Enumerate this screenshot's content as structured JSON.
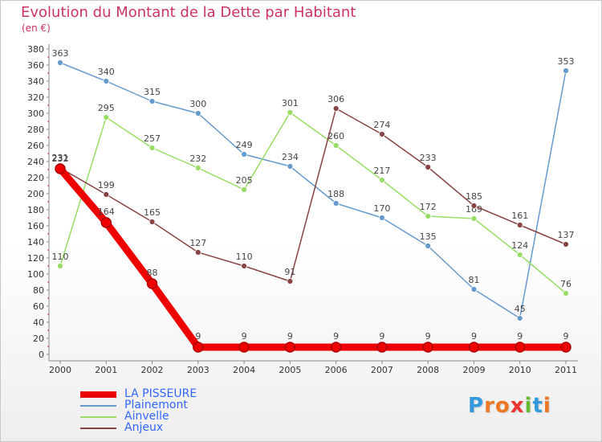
{
  "header": {
    "title": "Evolution du Montant de la Dette par Habitant",
    "unit": "(en €)"
  },
  "brand": {
    "letters": [
      {
        "ch": "P",
        "color": "#3399dd"
      },
      {
        "ch": "r",
        "color": "#ee7722"
      },
      {
        "ch": "o",
        "color": "#ee7722"
      },
      {
        "ch": "x",
        "color": "#ee3333"
      },
      {
        "ch": "i",
        "color": "#66bb33"
      },
      {
        "ch": "t",
        "color": "#3399dd"
      },
      {
        "ch": "i",
        "color": "#ee7722"
      }
    ]
  },
  "chart_data": {
    "type": "line",
    "title": "Evolution du Montant de la Dette par Habitant",
    "subtitle": "(en €)",
    "xlabel": "",
    "ylabel": "",
    "ylim": [
      0,
      380
    ],
    "ytick_step": 20,
    "grid": false,
    "legend_position": "bottom-left",
    "categories": [
      "2000",
      "2001",
      "2002",
      "2003",
      "2004",
      "2005",
      "2006",
      "2007",
      "2008",
      "2009",
      "2010",
      "2011"
    ],
    "series": [
      {
        "name": "LA PISSEURE",
        "color": "#ee0000",
        "bold": true,
        "values": [
          231,
          164,
          88,
          9,
          9,
          9,
          9,
          9,
          9,
          9,
          9,
          9
        ]
      },
      {
        "name": "Plainemont",
        "color": "#6699cc",
        "bold": false,
        "values": [
          363,
          340,
          315,
          300,
          249,
          234,
          188,
          170,
          135,
          81,
          45,
          353
        ]
      },
      {
        "name": "Ainvelle",
        "color": "#99dd66",
        "bold": false,
        "values": [
          110,
          295,
          257,
          232,
          205,
          301,
          260,
          217,
          172,
          169,
          124,
          76
        ]
      },
      {
        "name": "Anjeux",
        "color": "#884444",
        "bold": false,
        "values": [
          232,
          199,
          165,
          127,
          110,
          91,
          306,
          274,
          233,
          185,
          161,
          137
        ]
      }
    ]
  }
}
